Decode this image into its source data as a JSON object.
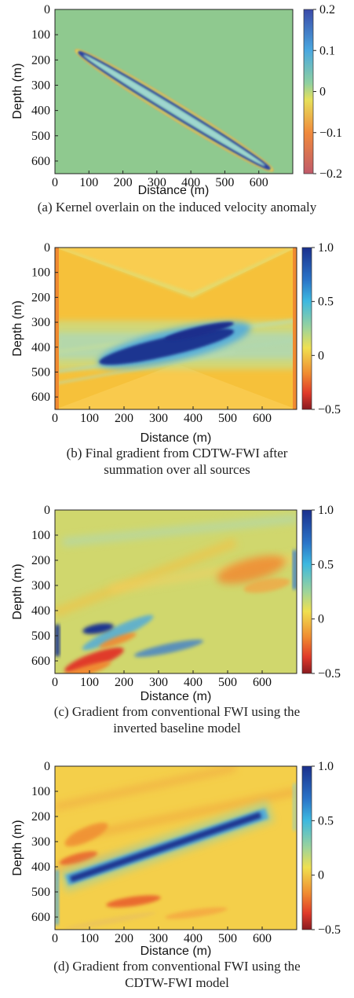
{
  "chart_data": [
    {
      "type": "heatmap",
      "panel": "a",
      "caption": [
        "(a) Kernel overlain on the induced velocity anomaly"
      ],
      "xlabel": "Distance (m)",
      "ylabel": "Depth (m)",
      "xlim": [
        0,
        700
      ],
      "ylim": [
        650,
        0
      ],
      "xticks": [
        "0",
        "100",
        "200",
        "300",
        "400",
        "500",
        "600"
      ],
      "yticks": [
        "0",
        "100",
        "200",
        "300",
        "400",
        "500",
        "600"
      ],
      "colorbar": {
        "min": -0.2,
        "max": 0.2,
        "ticks": [
          "0.2",
          "0.1",
          "0",
          "−0.1",
          "−0.2"
        ],
        "scheme": "a"
      },
      "background": "#8fc98f",
      "features": [
        {
          "kind": "kernel-ellipse",
          "x1": 15,
          "y1": 195,
          "x2": 680,
          "y2": 600
        },
        {
          "kind": "anomaly-streak",
          "x1": 140,
          "y1": 430,
          "x2": 640,
          "y2": 240
        }
      ]
    },
    {
      "type": "heatmap",
      "panel": "b",
      "caption": [
        "(b) Final gradient from CDTW-FWI after",
        "summation over all sources"
      ],
      "xlabel": "Distance (m)",
      "ylabel": "Depth (m)",
      "xlim": [
        0,
        700
      ],
      "ylim": [
        650,
        0
      ],
      "xticks": [
        "0",
        "100",
        "200",
        "300",
        "400",
        "500",
        "600"
      ],
      "yticks": [
        "0",
        "100",
        "200",
        "300",
        "400",
        "500",
        "600"
      ],
      "colorbar": {
        "min": -0.5,
        "max": 1.0,
        "ticks": [
          "1.0",
          "0.5",
          "0",
          "−0.5"
        ],
        "scheme": "b"
      },
      "background": "#f6c13a"
    },
    {
      "type": "heatmap",
      "panel": "c",
      "caption": [
        "(c) Gradient from conventional FWI using the",
        "inverted baseline model"
      ],
      "xlabel": "Distance (m)",
      "ylabel": "Depth (m)",
      "xlim": [
        0,
        700
      ],
      "ylim": [
        650,
        0
      ],
      "xticks": [
        "0",
        "100",
        "200",
        "300",
        "400",
        "500",
        "600"
      ],
      "yticks": [
        "0",
        "100",
        "200",
        "300",
        "400",
        "500",
        "600"
      ],
      "colorbar": {
        "min": -0.5,
        "max": 1.0,
        "ticks": [
          "1.0",
          "0.5",
          "0",
          "−0.5"
        ],
        "scheme": "b"
      },
      "background": "#d9d75a"
    },
    {
      "type": "heatmap",
      "panel": "d",
      "caption": [
        "(d) Gradient from conventional FWI using the",
        "CDTW-FWI model"
      ],
      "xlabel": "Distance (m)",
      "ylabel": "Depth (m)",
      "xlim": [
        0,
        700
      ],
      "ylim": [
        650,
        0
      ],
      "xticks": [
        "0",
        "100",
        "200",
        "300",
        "400",
        "500",
        "600"
      ],
      "yticks": [
        "0",
        "100",
        "200",
        "300",
        "400",
        "500",
        "600"
      ],
      "colorbar": {
        "min": -0.5,
        "max": 1.0,
        "ticks": [
          "1.0",
          "0.5",
          "0",
          "−0.5"
        ],
        "scheme": "b"
      },
      "background": "#f4cf4a"
    }
  ]
}
